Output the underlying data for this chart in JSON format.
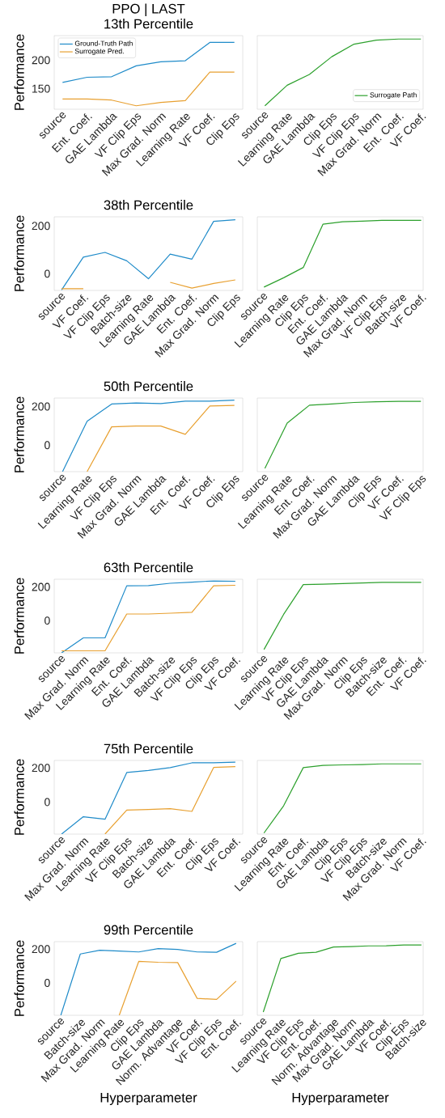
{
  "chart_data": [
    {
      "type": "line",
      "title": "PPO | LAST",
      "subtitle": "13th Percentile",
      "ylabel": "Performance",
      "categories": [
        "source",
        "Ent. Coef.",
        "GAE Lambda",
        "VF Clip Eps",
        "Max Grad. Norm",
        "Learning Rate",
        "VF Coef.",
        "Clip Eps"
      ],
      "ylim": [
        114,
        243
      ],
      "yticks": [
        150,
        200
      ],
      "legend": "top left",
      "series": [
        {
          "name": "Ground-Truth Path",
          "color": "#1f8bc9",
          "values": [
            161,
            170,
            171,
            190,
            197,
            199,
            231,
            231
          ]
        },
        {
          "name": "Surrogate Pred.",
          "color": "#e8a030",
          "values": [
            132,
            132,
            130,
            120,
            126,
            129,
            179,
            179
          ]
        }
      ]
    },
    {
      "type": "line",
      "categories": [
        "source",
        "Learning Rate",
        "GAE Lambda",
        "Clip Eps",
        "VF Clip Eps",
        "Max Grad. Norm",
        "Ent. Coef.",
        "VF Coef."
      ],
      "ylim": [
        114,
        243
      ],
      "tick_labels": "x",
      "legend": "bottom right",
      "series": [
        {
          "name": "Surrogate Path",
          "color": "#2ca02c",
          "values": [
            120,
            156,
            175,
            206,
            228,
            235,
            237,
            237
          ]
        }
      ]
    },
    {
      "type": "line",
      "title": "38th Percentile",
      "ylabel": "Performance",
      "categories": [
        "source",
        "VF Coef.",
        "VF Clip Eps",
        "Batch-size",
        "Learning Rate",
        "GAE Lambda",
        "Ent. Coef.",
        "Max Grad. Norm",
        "Clip Eps"
      ],
      "ylim": [
        -70,
        238
      ],
      "yticks": [
        0,
        200
      ],
      "series": [
        {
          "color": "#1f8bc9",
          "values": [
            -68,
            69,
            89,
            54,
            -21,
            82,
            61,
            219,
            226
          ]
        },
        {
          "color": "#e8a030",
          "values": [
            -63,
            -63,
            null,
            null,
            null,
            -36,
            -60,
            -41,
            -26
          ]
        }
      ]
    },
    {
      "type": "line",
      "categories": [
        "source",
        "Learning Rate",
        "Clip Eps",
        "Ent. Coef.",
        "GAE Lambda",
        "Max Grad. Norm",
        "VF Clip Eps",
        "Batch-size",
        "VF Coef."
      ],
      "ylim": [
        -70,
        238
      ],
      "tick_labels": "x",
      "series": [
        {
          "color": "#2ca02c",
          "values": [
            -56,
            -17,
            26,
            207,
            217,
            220,
            223,
            223,
            223
          ]
        }
      ]
    },
    {
      "type": "line",
      "title": "50th Percentile",
      "ylabel": "Performance",
      "categories": [
        "source",
        "Learning Rate",
        "VF Clip Eps",
        "Max Grad. Norm",
        "GAE Lambda",
        "Ent. Coef.",
        "VF Coef.",
        "Clip Eps"
      ],
      "ylim": [
        -137,
        244
      ],
      "yticks": [
        0,
        200
      ],
      "series": [
        {
          "color": "#1f8bc9",
          "values": [
            -137,
            124,
            213,
            218,
            215,
            228,
            228,
            233
          ]
        },
        {
          "color": "#e8a030",
          "values": [
            null,
            -137,
            95,
            99,
            99,
            56,
            203,
            206
          ]
        }
      ]
    },
    {
      "type": "line",
      "categories": [
        "source",
        "Learning Rate",
        "Ent. Coef.",
        "Max Grad. Norm",
        "GAE Lambda",
        "Clip Eps",
        "VF Coef.",
        "VF Clip Eps"
      ],
      "ylim": [
        -137,
        244
      ],
      "tick_labels": "x",
      "series": [
        {
          "color": "#2ca02c",
          "values": [
            -120,
            114,
            207,
            213,
            221,
            225,
            227,
            227
          ]
        }
      ]
    },
    {
      "type": "line",
      "title": "63th Percentile",
      "ylabel": "Performance",
      "categories": [
        "source",
        "Max Grad. Norm",
        "Learning Rate",
        "Ent. Coef.",
        "GAE Lambda",
        "Batch-size",
        "VF Clip Eps",
        "Clip Eps",
        "VF Coef."
      ],
      "ylim": [
        -192,
        246
      ],
      "yticks": [
        0,
        200
      ],
      "series": [
        {
          "color": "#1f8bc9",
          "values": [
            -192,
            -103,
            -103,
            207,
            208,
            222,
            229,
            236,
            234
          ]
        },
        {
          "color": "#e8a030",
          "values": [
            -180,
            -180,
            -180,
            39,
            39,
            44,
            49,
            207,
            210
          ]
        }
      ]
    },
    {
      "type": "line",
      "categories": [
        "source",
        "Learning Rate",
        "VF Clip Eps",
        "GAE Lambda",
        "Max Grad. Norm",
        "Clip Eps",
        "Batch-size",
        "Ent. Coef.",
        "VF Coef."
      ],
      "ylim": [
        -192,
        246
      ],
      "tick_labels": "x",
      "series": [
        {
          "color": "#2ca02c",
          "values": [
            -172,
            37,
            214,
            217,
            220,
            224,
            227,
            227,
            227
          ]
        }
      ]
    },
    {
      "type": "line",
      "title": "75th Percentile",
      "ylabel": "Performance",
      "categories": [
        "source",
        "Max Grad. Norm",
        "Learning Rate",
        "VF Clip Eps",
        "Batch-size",
        "GAE Lambda",
        "Ent. Coef.",
        "Clip Eps",
        "VF Coef."
      ],
      "ylim": [
        -188,
        244
      ],
      "yticks": [
        0,
        200
      ],
      "series": [
        {
          "color": "#1f8bc9",
          "values": [
            -188,
            -86,
            -101,
            173,
            185,
            202,
            230,
            230,
            234
          ]
        },
        {
          "color": "#e8a030",
          "values": [
            null,
            null,
            -188,
            -47,
            -44,
            -39,
            -55,
            203,
            208
          ]
        }
      ]
    },
    {
      "type": "line",
      "categories": [
        "source",
        "Learning Rate",
        "Ent. Coef.",
        "GAE Lambda",
        "Clip Eps",
        "VF Clip Eps",
        "Batch-size",
        "Max Grad. Norm",
        "VF Coef."
      ],
      "ylim": [
        -188,
        244
      ],
      "tick_labels": "x",
      "series": [
        {
          "color": "#2ca02c",
          "values": [
            -182,
            -22,
            202,
            215,
            218,
            220,
            224,
            224,
            224
          ]
        }
      ]
    },
    {
      "type": "line",
      "title": "99th Percentile",
      "ylabel": "Performance",
      "xlabel": "Hyperparameter",
      "categories": [
        "source",
        "Batch-size",
        "Max Grad. Norm",
        "Learning Rate",
        "Clip Eps",
        "GAE Lambda",
        "Norm. Advantage",
        "VF Coef.",
        "VF Clip Eps",
        "Ent. Coef."
      ],
      "ylim": [
        -192,
        244
      ],
      "yticks": [
        0,
        200
      ],
      "series": [
        {
          "color": "#1f8bc9",
          "values": [
            -192,
            171,
            193,
            188,
            183,
            203,
            198,
            183,
            181,
            234
          ]
        },
        {
          "color": "#e8a030",
          "values": [
            null,
            null,
            null,
            -192,
            127,
            122,
            120,
            -92,
            -98,
            10
          ]
        }
      ]
    },
    {
      "type": "line",
      "xlabel": "Hyperparameter",
      "categories": [
        "source",
        "Learning Rate",
        "VF Clip Eps",
        "Ent. Coef.",
        "Norm. Advantage",
        "Max Grad. Norm",
        "GAE Lambda",
        "VF Coef.",
        "Clip Eps",
        "Batch-size"
      ],
      "ylim": [
        -192,
        244
      ],
      "tick_labels": "x",
      "series": [
        {
          "color": "#2ca02c",
          "values": [
            -173,
            144,
            175,
            181,
            212,
            215,
            219,
            220,
            224,
            224
          ]
        }
      ]
    }
  ]
}
